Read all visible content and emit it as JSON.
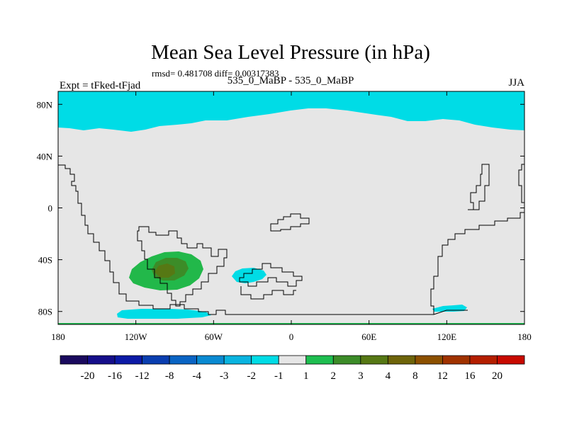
{
  "title": "Mean Sea Level Pressure (in hPa)",
  "subtitle": "rmsd= 0.481708 diff= 0.00317383",
  "left_label": "Expt = tFked-tFjad",
  "center_label": "535_0_MaBP - 535_0_MaBP",
  "right_label": "JJA",
  "map": {
    "lon_range": [
      -180,
      180
    ],
    "lat_range": [
      -90,
      90
    ],
    "background_color": "#e6e6e6",
    "x_ticks": [
      {
        "lon": -180,
        "label": "180"
      },
      {
        "lon": -120,
        "label": "120W"
      },
      {
        "lon": -60,
        "label": "60W"
      },
      {
        "lon": 0,
        "label": "0"
      },
      {
        "lon": 60,
        "label": "60E"
      },
      {
        "lon": 120,
        "label": "120E"
      },
      {
        "lon": 180,
        "label": "180"
      }
    ],
    "y_ticks": [
      {
        "lat": 80,
        "label": "80N"
      },
      {
        "lat": 40,
        "label": "40N"
      },
      {
        "lat": 0,
        "label": "0"
      },
      {
        "lat": -40,
        "label": "40S"
      },
      {
        "lat": -80,
        "label": "80S"
      }
    ]
  },
  "colorbar": {
    "colors": [
      "#1a0a5e",
      "#150e8a",
      "#0c1aa6",
      "#0a3eb0",
      "#0a64c4",
      "#0a8ad2",
      "#0ab4e0",
      "#00dce6",
      "#e6e6e6",
      "#1ebe50",
      "#3c8c28",
      "#567814",
      "#6e640a",
      "#8c5000",
      "#a03200",
      "#b41e00",
      "#c80a00"
    ],
    "labels": [
      "-20",
      "-16",
      "-12",
      "-8",
      "-4",
      "-3",
      "-2",
      "-1",
      "1",
      "2",
      "3",
      "4",
      "8",
      "12",
      "16",
      "20"
    ]
  }
}
